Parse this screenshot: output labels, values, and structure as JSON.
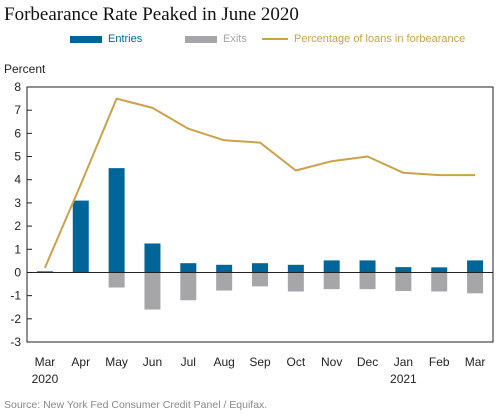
{
  "title": "Forbearance Rate Peaked in June 2020",
  "y_axis_label": "Percent",
  "source": "Source: New York Fed Consumer Credit Panel / Equifax.",
  "colors": {
    "entries": "#006699",
    "exits": "#a6a6a8",
    "forbearance": "#c9a24a",
    "frame": "#222222"
  },
  "chart_data": {
    "type": "bar",
    "categories": [
      "Mar",
      "Apr",
      "May",
      "Jun",
      "Jul",
      "Aug",
      "Sep",
      "Oct",
      "Nov",
      "Dec",
      "Jan",
      "Feb",
      "Mar"
    ],
    "year_labels": [
      "2020",
      "",
      "",
      "",
      "",
      "",
      "",
      "",
      "",
      "",
      "2021",
      "",
      ""
    ],
    "ylim": [
      -3,
      8
    ],
    "yticks": [
      -3,
      -2,
      -1,
      0,
      1,
      2,
      3,
      4,
      5,
      6,
      7,
      8
    ],
    "legend_position": "top",
    "series": [
      {
        "name": "Entries",
        "type": "bar",
        "values": [
          0.05,
          3.1,
          4.5,
          1.25,
          0.4,
          0.33,
          0.4,
          0.33,
          0.52,
          0.52,
          0.23,
          0.22,
          0.52
        ]
      },
      {
        "name": "Exits",
        "type": "bar",
        "values": [
          0.0,
          0.0,
          -0.65,
          -1.6,
          -1.2,
          -0.78,
          -0.6,
          -0.82,
          -0.72,
          -0.72,
          -0.8,
          -0.82,
          -0.9
        ]
      },
      {
        "name": "Percentage of loans in forbearance",
        "type": "line",
        "values": [
          0.2,
          3.8,
          7.5,
          7.1,
          6.2,
          5.7,
          5.6,
          4.4,
          4.8,
          5.0,
          4.3,
          4.2,
          4.2
        ]
      }
    ]
  }
}
